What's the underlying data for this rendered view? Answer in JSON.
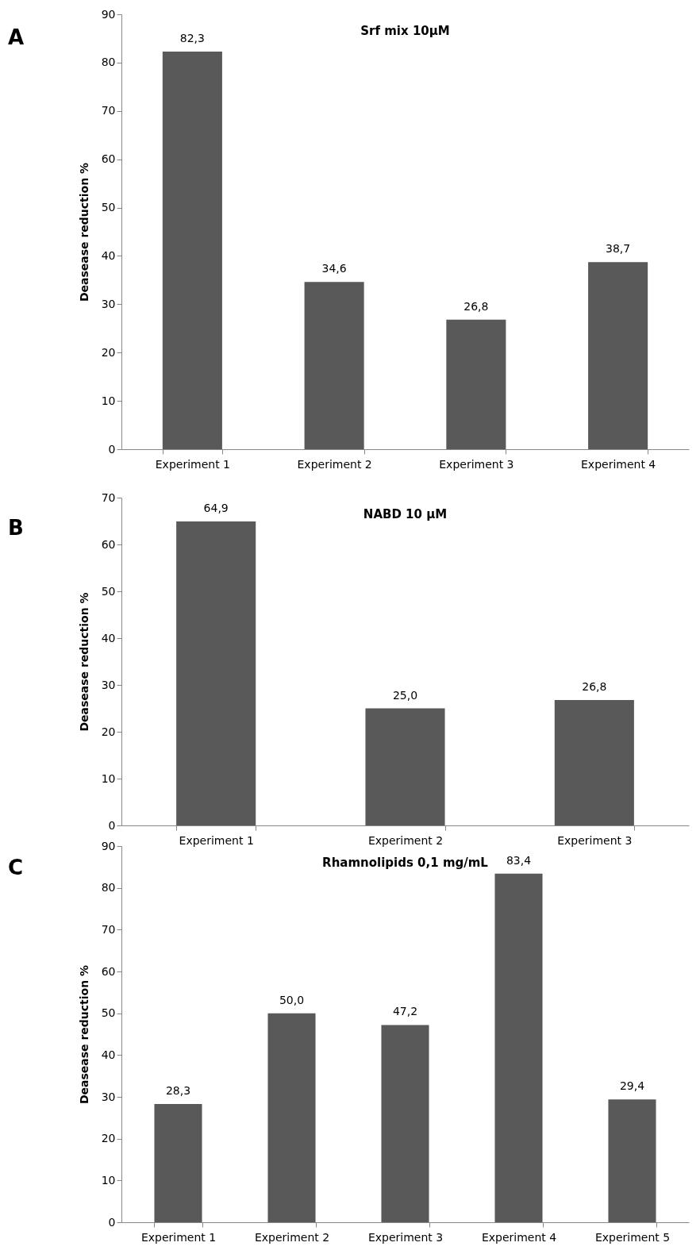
{
  "chart_data": [
    {
      "type": "bar",
      "title": "Srf mix 10µM",
      "annotations": [
        "A"
      ],
      "ylabel": "Deasease reduction %",
      "categories": [
        "Experiment 1",
        "Experiment 2",
        "Experiment 3",
        "Experiment 4"
      ],
      "values": [
        82.3,
        34.6,
        26.8,
        38.7
      ],
      "value_labels": [
        "82,3",
        "34,6",
        "26,8",
        "38,7"
      ],
      "color": "#595959",
      "ylim": [
        0,
        90
      ],
      "yticks": [
        0,
        10,
        20,
        30,
        40,
        50,
        60,
        70,
        80,
        90
      ]
    },
    {
      "type": "bar",
      "title": "NABD 10 µM",
      "annotations": [
        "B"
      ],
      "ylabel": "Deasease reduction %",
      "categories": [
        "Experiment 1",
        "Experiment 2",
        "Experiment 3"
      ],
      "values": [
        64.9,
        25.0,
        26.8
      ],
      "value_labels": [
        "64,9",
        "25,0",
        "26,8"
      ],
      "color": "#595959",
      "ylim": [
        0,
        70
      ],
      "yticks": [
        0,
        10,
        20,
        30,
        40,
        50,
        60,
        70
      ]
    },
    {
      "type": "bar",
      "title": "Rhamnolipids 0,1 mg/mL",
      "annotations": [
        "C"
      ],
      "ylabel": "Deasease reduction %",
      "categories": [
        "Experiment 1",
        "Experiment 2",
        "Experiment 3",
        "Experiment 4",
        "Experiment 5"
      ],
      "values": [
        28.3,
        50.0,
        47.2,
        83.4,
        29.4
      ],
      "value_labels": [
        "28,3",
        "50,0",
        "47,2",
        "83,4",
        "29,4"
      ],
      "color": "#595959",
      "ylim": [
        0,
        90
      ],
      "yticks": [
        0,
        10,
        20,
        30,
        40,
        50,
        60,
        70,
        80,
        90
      ]
    }
  ]
}
